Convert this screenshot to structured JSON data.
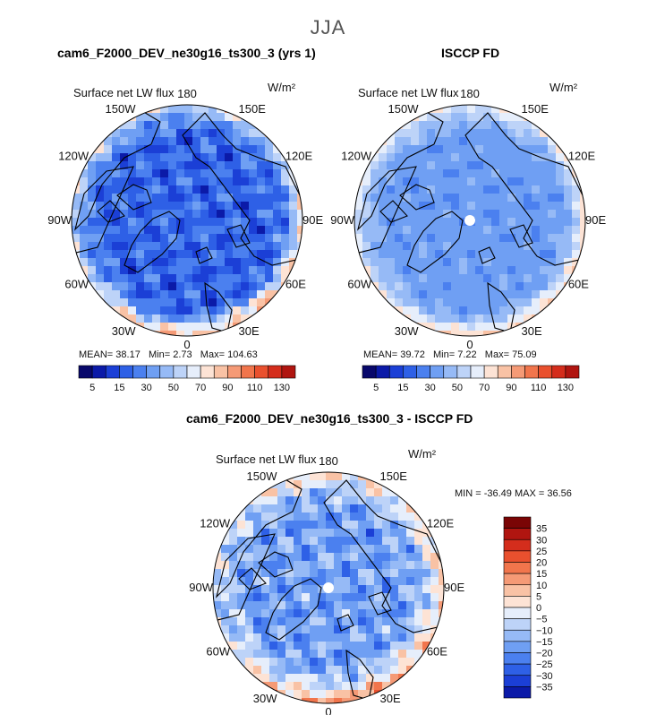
{
  "season": "JJA",
  "panels": [
    {
      "title": "cam6_F2000_DEV_ne30g16_ts300_3 (yrs 1)",
      "variable": "Surface net LW flux",
      "units": "W/m²",
      "stats": {
        "mean_label": "MEAN=",
        "mean": "38.17",
        "min_label": "Min=",
        "min": "2.73",
        "max_label": "Max=",
        "max": "104.63"
      }
    },
    {
      "title": "ISCCP FD",
      "variable": "Surface net LW flux",
      "units": "W/m²",
      "stats": {
        "mean_label": "MEAN=",
        "mean": "39.72",
        "min_label": "Min=",
        "min": "7.22",
        "max_label": "Max=",
        "max": "75.09"
      }
    },
    {
      "title": "cam6_F2000_DEV_ne30g16_ts300_3 - ISCCP FD",
      "variable": "Surface net LW flux",
      "units": "W/m²",
      "stats": {
        "min_label": "MIN =",
        "min": "-36.49",
        "max_label": "MAX =",
        "max": "36.56"
      }
    }
  ],
  "longitude_labels": [
    "180",
    "150E",
    "120E",
    "90E",
    "60E",
    "30E",
    "0",
    "30W",
    "60W",
    "90W",
    "120W",
    "150W"
  ],
  "colors": {
    "abs_scale": [
      "#08086b",
      "#0b1aa8",
      "#1b3fd6",
      "#2e60e6",
      "#4b80ef",
      "#6f9ff3",
      "#96baf6",
      "#bdd3f8",
      "#e6eefb",
      "#fde3d5",
      "#f9c2a5",
      "#f59a76",
      "#f1754c",
      "#e9502e",
      "#d42d1c",
      "#b01510",
      "#7a0505"
    ],
    "diff_scale": [
      "#08086b",
      "#0b1aa8",
      "#1b3fd6",
      "#2e60e6",
      "#4b80ef",
      "#6f9ff3",
      "#96baf6",
      "#bdd3f8",
      "#e6eefb",
      "#fde3d5",
      "#f9c2a5",
      "#f59a76",
      "#f1754c",
      "#e9502e",
      "#d42d1c",
      "#b01510",
      "#7a0505"
    ],
    "land_outline": "#000000"
  },
  "chart_data": [
    {
      "type": "heatmap",
      "projection": "north-polar-stereographic",
      "title": "cam6_F2000_DEV_ne30g16_ts300_3 (yrs 1)",
      "variable": "Surface net LW flux",
      "units": "W/m2",
      "colorbar_levels": [
        5,
        10,
        15,
        20,
        30,
        40,
        50,
        60,
        70,
        80,
        90,
        100,
        110,
        120,
        130
      ],
      "colorbar_tick_labels": [
        "5",
        "15",
        "30",
        "50",
        "70",
        "90",
        "110",
        "130"
      ],
      "colorbar_orientation": "horizontal",
      "mean": 38.17,
      "min": 2.73,
      "max": 104.63
    },
    {
      "type": "heatmap",
      "projection": "north-polar-stereographic",
      "title": "ISCCP FD",
      "variable": "Surface net LW flux",
      "units": "W/m2",
      "colorbar_levels": [
        5,
        10,
        15,
        20,
        30,
        40,
        50,
        60,
        70,
        80,
        90,
        100,
        110,
        120,
        130
      ],
      "colorbar_tick_labels": [
        "5",
        "15",
        "30",
        "50",
        "70",
        "90",
        "110",
        "130"
      ],
      "colorbar_orientation": "horizontal",
      "mean": 39.72,
      "min": 7.22,
      "max": 75.09
    },
    {
      "type": "heatmap",
      "projection": "north-polar-stereographic",
      "title": "cam6_F2000_DEV_ne30g16_ts300_3 - ISCCP FD",
      "variable": "Surface net LW flux",
      "units": "W/m2",
      "colorbar_levels": [
        -35,
        -30,
        -25,
        -20,
        -15,
        -10,
        -5,
        0,
        5,
        10,
        15,
        20,
        25,
        30,
        35
      ],
      "colorbar_tick_labels": [
        "35",
        "30",
        "25",
        "20",
        "15",
        "10",
        "5",
        "0",
        "−5",
        "−10",
        "−15",
        "−20",
        "−25",
        "−30",
        "−35"
      ],
      "colorbar_orientation": "vertical",
      "min": -36.49,
      "max": 36.56
    }
  ]
}
